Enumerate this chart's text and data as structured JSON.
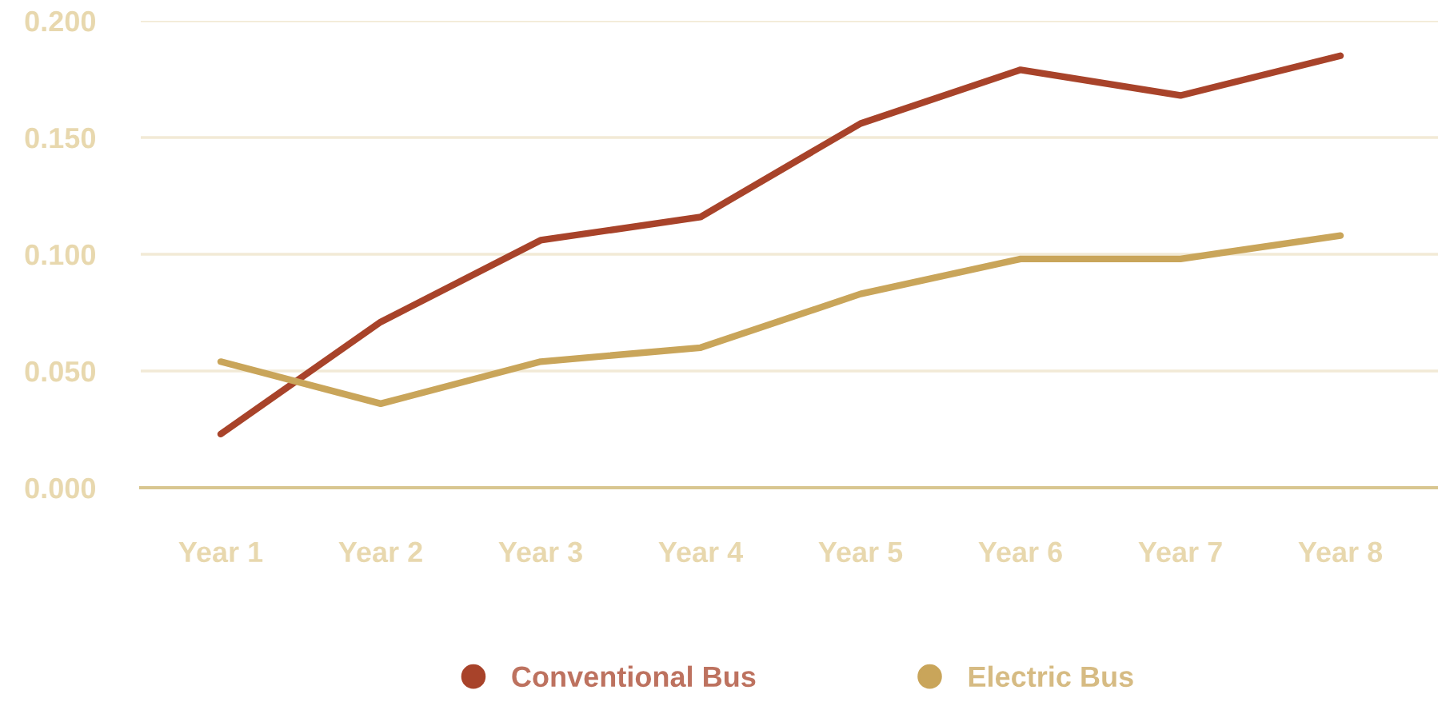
{
  "chart_data": {
    "type": "line",
    "categories": [
      "Year 1",
      "Year 2",
      "Year 3",
      "Year 4",
      "Year 5",
      "Year 6",
      "Year 7",
      "Year 8"
    ],
    "series": [
      {
        "name": "Conventional Bus",
        "color": "#a8432a",
        "values": [
          0.023,
          0.071,
          0.106,
          0.116,
          0.156,
          0.179,
          0.168,
          0.185
        ]
      },
      {
        "name": "Electric Bus",
        "color": "#c9a55a",
        "values": [
          0.054,
          0.036,
          0.054,
          0.06,
          0.083,
          0.098,
          0.098,
          0.108
        ]
      }
    ],
    "ylim": [
      0,
      0.2
    ],
    "yticks": [
      {
        "value": 0,
        "label": "0.000"
      },
      {
        "value": 0.05,
        "label": "0.050"
      },
      {
        "value": 0.1,
        "label": "0.100"
      },
      {
        "value": 0.15,
        "label": "0.150"
      },
      {
        "value": 0.2,
        "label": "0.200"
      }
    ],
    "grid": "y",
    "legend": "bottom",
    "marker": "none",
    "line_style": "solid"
  }
}
